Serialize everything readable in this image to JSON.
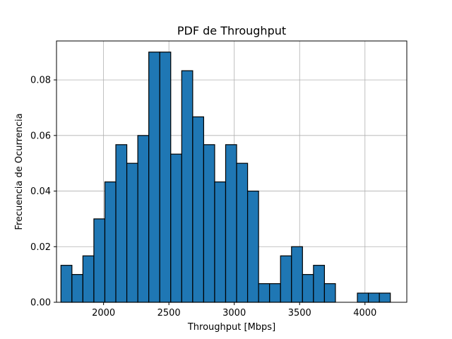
{
  "chart_data": {
    "type": "bar",
    "title": "PDF de Throughput",
    "xlabel": "Throughput [Mbps]",
    "ylabel": "Frecuencia de Ocurrencia",
    "xlim": [
      1640,
      4320
    ],
    "ylim": [
      0,
      0.094
    ],
    "grid": true,
    "bar_color": "#1f77b4",
    "edge_color": "#000000",
    "x_ticks": [
      {
        "value": 2000,
        "label": "2000"
      },
      {
        "value": 2500,
        "label": "2500"
      },
      {
        "value": 3000,
        "label": "3000"
      },
      {
        "value": 3500,
        "label": "3500"
      },
      {
        "value": 4000,
        "label": "4000"
      }
    ],
    "y_ticks": [
      {
        "value": 0.0,
        "label": "0.00"
      },
      {
        "value": 0.02,
        "label": "0.02"
      },
      {
        "value": 0.04,
        "label": "0.04"
      },
      {
        "value": 0.06,
        "label": "0.06"
      },
      {
        "value": 0.08,
        "label": "0.08"
      }
    ],
    "bin_width": 84,
    "bin_starts": [
      1674,
      1758,
      1842,
      1926,
      2010,
      2094,
      2178,
      2262,
      2346,
      2430,
      2514,
      2598,
      2682,
      2766,
      2850,
      2934,
      3018,
      3102,
      3186,
      3270,
      3354,
      3438,
      3522,
      3606,
      3690,
      3774,
      3858,
      3942,
      4026,
      4110
    ],
    "values": [
      0.0133,
      0.01,
      0.0167,
      0.03,
      0.0433,
      0.0567,
      0.05,
      0.06,
      0.09,
      0.09,
      0.0533,
      0.0833,
      0.0667,
      0.0567,
      0.0433,
      0.0567,
      0.05,
      0.04,
      0.0067,
      0.0067,
      0.0167,
      0.02,
      0.01,
      0.0133,
      0.0067,
      0.0,
      0.0,
      0.0033,
      0.0033,
      0.0033
    ]
  }
}
